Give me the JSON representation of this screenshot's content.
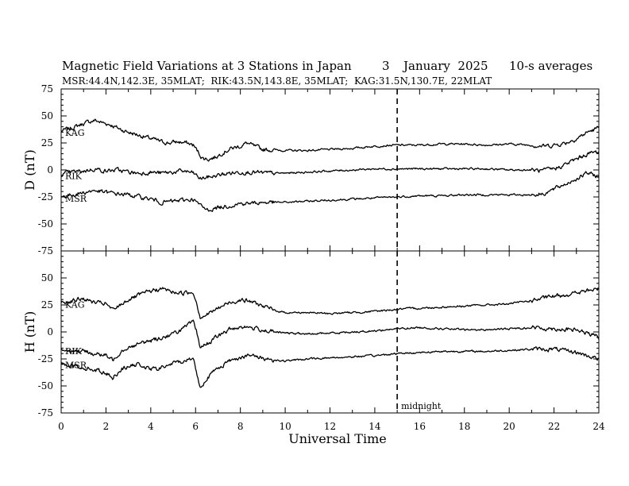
{
  "chart_data": {
    "type": "line",
    "title": {
      "main": "Magnetic Field Variations at 3 Stations in Japan",
      "day": "3",
      "month_year": "January  2025",
      "avg": "10-s averages"
    },
    "subtitle": "MSR:44.4N,142.3E, 35MLAT;  RIK:43.5N,143.8E, 35MLAT;  KAG:31.5N,130.7E, 22MLAT",
    "xlabel": "Universal Time",
    "xlim": [
      0,
      24
    ],
    "xticks": [
      "0",
      "2",
      "4",
      "6",
      "8",
      "10",
      "12",
      "14",
      "16",
      "18",
      "20",
      "22",
      "24"
    ],
    "midnight": {
      "x": 15,
      "label": "midnight"
    },
    "panels": [
      {
        "id": "D",
        "ylabel": "D (nT)",
        "ylim": [
          -75,
          75
        ],
        "yticks": [
          "75",
          "50",
          "25",
          "0",
          "-25",
          "-50",
          "-75"
        ],
        "series": [
          {
            "name": "KAG",
            "x": [
              0,
              0.5,
              1,
              1.5,
              1.8,
              2.2,
              2.6,
              3,
              3.5,
              4,
              4.5,
              4.8,
              5.2,
              5.6,
              5.9,
              6.1,
              6.3,
              6.6,
              6.9,
              7.2,
              7.6,
              8,
              8.3,
              8.6,
              9,
              10,
              11,
              12,
              13,
              14,
              15,
              16,
              17,
              18,
              19,
              20,
              21,
              21.5,
              22,
              22.5,
              23,
              23.5,
              24
            ],
            "y": [
              36,
              39,
              43,
              46,
              44,
              42,
              38,
              35,
              32,
              29,
              26,
              25,
              26,
              25,
              23,
              17,
              11,
              10,
              12,
              16,
              20,
              22,
              25,
              22,
              19,
              18,
              18,
              19,
              20,
              22,
              23,
              23,
              24,
              24,
              23,
              24,
              23,
              22,
              23,
              25,
              29,
              35,
              39
            ]
          },
          {
            "name": "RIK",
            "x": [
              0,
              0.5,
              1,
              1.5,
              2,
              2.5,
              3,
              3.5,
              4,
              4.5,
              5,
              5.5,
              5.9,
              6.2,
              6.5,
              7,
              7.5,
              8,
              8.5,
              9,
              10,
              11,
              12,
              13,
              14,
              15,
              16,
              17,
              18,
              19,
              20,
              21,
              21.5,
              22,
              22.5,
              23,
              23.5,
              24
            ],
            "y": [
              -4,
              -2,
              -1,
              1,
              -1,
              0,
              -2,
              -3,
              -2,
              -3,
              -2,
              -1,
              -3,
              -8,
              -7,
              -5,
              -3,
              -2,
              -2,
              -3,
              -3,
              -2,
              -1,
              0,
              1,
              1,
              1,
              1,
              1,
              1,
              0,
              0,
              -1,
              1,
              5,
              10,
              15,
              17
            ]
          },
          {
            "name": "MSR",
            "x": [
              0,
              0.5,
              1,
              1.5,
              2,
              2.5,
              3,
              3.5,
              4,
              4.5,
              5,
              5.5,
              5.9,
              6.2,
              6.5,
              7,
              7.5,
              8,
              8.5,
              9,
              10,
              11,
              12,
              13,
              14,
              15,
              16,
              17,
              18,
              19,
              20,
              21,
              21.5,
              22,
              22.5,
              23,
              23.5,
              24
            ],
            "y": [
              -25,
              -23,
              -21,
              -19,
              -21,
              -22,
              -23,
              -25,
              -27,
              -30,
              -29,
              -28,
              -27,
              -33,
              -37,
              -35,
              -33,
              -31,
              -31,
              -30,
              -30,
              -29,
              -28,
              -27,
              -26,
              -25,
              -24,
              -24,
              -23,
              -23,
              -23,
              -23,
              -22,
              -18,
              -13,
              -8,
              -3,
              -6
            ]
          }
        ]
      },
      {
        "id": "H",
        "ylabel": "H (nT)",
        "ylim": [
          -75,
          75
        ],
        "yticks": [
          "50",
          "25",
          "0",
          "-25",
          "-50",
          "-75"
        ],
        "series": [
          {
            "name": "KAG",
            "x": [
              0,
              0.5,
              1,
              1.5,
              2,
              2.3,
              2.7,
              3,
              3.5,
              4,
              4.5,
              5,
              5.5,
              5.9,
              6.05,
              6.2,
              6.5,
              7,
              7.5,
              8,
              8.5,
              9,
              9.5,
              10,
              11,
              12,
              13,
              14,
              15,
              16,
              17,
              18,
              19,
              20,
              21,
              22,
              23,
              24
            ],
            "y": [
              27,
              29,
              31,
              27,
              26,
              20,
              26,
              30,
              34,
              38,
              40,
              37,
              36,
              37,
              27,
              14,
              16,
              22,
              27,
              30,
              28,
              24,
              20,
              18,
              18,
              17,
              18,
              19,
              21,
              22,
              23,
              24,
              25,
              26,
              29,
              33,
              36,
              40
            ]
          },
          {
            "name": "RIK",
            "x": [
              0,
              0.5,
              1,
              1.5,
              2,
              2.3,
              2.7,
              3,
              3.5,
              4,
              4.5,
              5,
              5.5,
              5.9,
              6.05,
              6.2,
              6.5,
              7,
              7.5,
              8,
              8.5,
              9,
              9.5,
              10,
              11,
              12,
              13,
              14,
              15,
              16,
              17,
              18,
              19,
              20,
              21,
              22,
              23,
              24
            ],
            "y": [
              -16,
              -17,
              -18,
              -20,
              -22,
              -26,
              -17,
              -14,
              -11,
              -8,
              -5,
              -2,
              4,
              9,
              0,
              -14,
              -11,
              -4,
              2,
              5,
              4,
              2,
              0,
              -1,
              -2,
              -1,
              0,
              1,
              3,
              4,
              3,
              2,
              2,
              3,
              4,
              3,
              2,
              -5
            ]
          },
          {
            "name": "MSR",
            "x": [
              0,
              0.5,
              1,
              1.5,
              2,
              2.3,
              2.7,
              3,
              3.5,
              4,
              4.5,
              5,
              5.5,
              5.9,
              6.05,
              6.2,
              6.5,
              7,
              7.5,
              8,
              8.5,
              9,
              9.5,
              10,
              11,
              12,
              13,
              14,
              15,
              16,
              17,
              18,
              19,
              20,
              21,
              22,
              23,
              24
            ],
            "y": [
              -29,
              -31,
              -33,
              -35,
              -38,
              -42,
              -34,
              -32,
              -30,
              -35,
              -33,
              -29,
              -27,
              -24,
              -38,
              -52,
              -43,
              -33,
              -27,
              -23,
              -22,
              -24,
              -26,
              -27,
              -25,
              -24,
              -23,
              -22,
              -20,
              -19,
              -18,
              -18,
              -18,
              -17,
              -16,
              -16,
              -19,
              -25
            ]
          }
        ]
      }
    ]
  }
}
